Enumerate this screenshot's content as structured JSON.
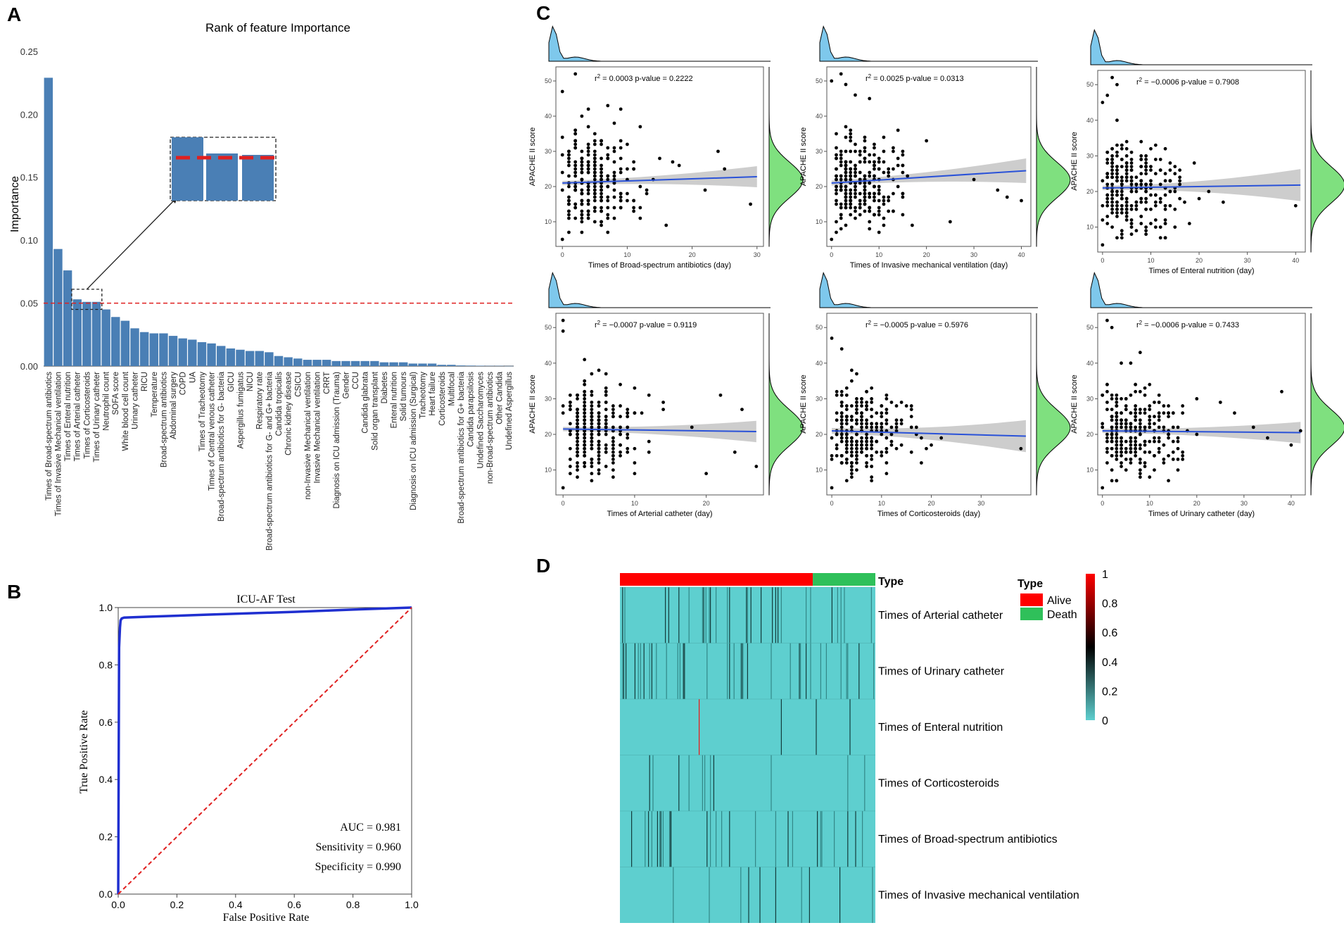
{
  "panel_labels": {
    "a": "A",
    "b": "B",
    "c": "C",
    "d": "D"
  },
  "colors": {
    "bar": "#4a7fb5",
    "threshold": "#e02020",
    "roc": "#1f2fd0",
    "diag": "#e02020",
    "fit": "#2a52d8",
    "ci": "#c8c8c8",
    "dens_x": "#7ec8ec",
    "dens_y": "#7fe07f",
    "alive": "#ff0000",
    "death": "#2fc05a",
    "heat_low": "#5ecfcf",
    "heat_mid": "#000000",
    "heat_high": "#ff0000"
  },
  "chart_data": [
    {
      "id": "A",
      "type": "bar",
      "title": "Rank of feature Importance",
      "ylabel": "Importance",
      "xlabel": "",
      "ylim": [
        0,
        0.26
      ],
      "yticks": [
        "0.00",
        "0.05",
        "0.10",
        "0.15",
        "0.20",
        "0.25"
      ],
      "threshold": 0.05,
      "categories": [
        "Times of Broad-spectrum antibiotics",
        "Times of Invasive Mechanical ventilation",
        "Times of Enteral nutrition",
        "Times of Arterial catheter",
        "Times of Corticosteroids",
        "Times of Urinary catheter",
        "Neutrophil count",
        "SOFA score",
        "White blood cell count",
        "Urinary catheter",
        "RICU",
        "Temperature",
        "Broad-spectrum antibiotics",
        "Abdominal surgery",
        "COPD",
        "UA",
        "Times of Tracheotomy",
        "Times of Central venous catheter",
        "Broad-spectrum antibiotics for G- bacteria",
        "GICU",
        "Aspergillus fumigatus",
        "NICU",
        "Respiratory rate",
        "Broad-spectrum antibiotics for G- and G+ bacteria",
        "Candida tropicalis",
        "Chronic kidney disease",
        "CSICU",
        "non-Invasive Mechanical ventilation",
        "Invasive Mechanical ventilation",
        "CRRT",
        "Diagnosis on ICU admission (Trauma)",
        "Gender",
        "CCU",
        "Candida glabrata",
        "Solid organ transplant",
        "Diabetes",
        "Enteral nutrition",
        "Solid tumours",
        "Diagnosis on ICU admission (Surgical)",
        "Tracheotomy",
        "Heart failure",
        "Corticosteroids",
        "Multifocal",
        "Broad-spectrum antibiotics for G+ bacteria",
        "Candida parapsilosis",
        "Undefined Saccharomyces",
        "non-Broad-spectrum antibiotics",
        "Other Candida",
        "Undefined Aspergillus"
      ],
      "values": [
        0.229,
        0.093,
        0.076,
        0.053,
        0.051,
        0.051,
        0.045,
        0.039,
        0.036,
        0.03,
        0.027,
        0.026,
        0.026,
        0.024,
        0.022,
        0.021,
        0.019,
        0.018,
        0.016,
        0.014,
        0.013,
        0.012,
        0.012,
        0.011,
        0.008,
        0.007,
        0.006,
        0.005,
        0.005,
        0.005,
        0.004,
        0.004,
        0.004,
        0.004,
        0.004,
        0.003,
        0.003,
        0.003,
        0.002,
        0.002,
        0.002,
        0.001,
        0.001,
        0.0005,
        0.0004,
        0.0003,
        0.0002,
        0.0002,
        0.0001
      ]
    },
    {
      "id": "B",
      "type": "line",
      "title": "ICU-AF Test",
      "xlabel": "False Positive Rate",
      "ylabel": "True Positive Rate",
      "xlim": [
        0,
        1
      ],
      "ylim": [
        0,
        1
      ],
      "xticks": [
        "0.0",
        "0.2",
        "0.4",
        "0.6",
        "0.8",
        "1.0"
      ],
      "yticks": [
        "0.0",
        "0.2",
        "0.4",
        "0.6",
        "0.8",
        "1.0"
      ],
      "series": [
        {
          "name": "ROC",
          "x": [
            0,
            0.003,
            0.006,
            0.008,
            0.012,
            0.02,
            0.1,
            0.3,
            0.6,
            0.8,
            1.0
          ],
          "y": [
            0,
            0.86,
            0.93,
            0.955,
            0.962,
            0.965,
            0.968,
            0.975,
            0.985,
            0.993,
            1.0
          ]
        },
        {
          "name": "chance",
          "x": [
            0,
            1
          ],
          "y": [
            0,
            1
          ]
        }
      ],
      "annotations": [
        "AUC = 0.981",
        "Sensitivity = 0.960",
        "Specificity = 0.990"
      ]
    },
    {
      "id": "C",
      "type": "scatter",
      "ylabel": "APACHE II score",
      "panels": [
        {
          "xlabel": "Times of Broad-spectrum antibiotics (day)",
          "xlim": [
            -1,
            31
          ],
          "xticks": [
            0,
            10,
            20,
            30
          ],
          "ylim": [
            3,
            54
          ],
          "yticks": [
            10,
            20,
            30,
            40,
            50
          ],
          "r2": "0.0003",
          "pvalue": "0.2222",
          "fit": [
            21.0,
            22.8
          ],
          "ci_halfwidth": [
            0.6,
            3.0
          ],
          "density_peak": 0.5,
          "points": [
            [
              0,
              5
            ],
            [
              0,
              47
            ],
            [
              2,
              52
            ],
            [
              3,
              40
            ],
            [
              4,
              42
            ],
            [
              5,
              35
            ],
            [
              7,
              43
            ],
            [
              8,
              38
            ],
            [
              9,
              42
            ],
            [
              12,
              37
            ],
            [
              15,
              28
            ],
            [
              18,
              26
            ],
            [
              22,
              19
            ],
            [
              24,
              30
            ],
            [
              25,
              25
            ],
            [
              29,
              15
            ]
          ]
        },
        {
          "xlabel": "Times of Invasive mechanical ventilation (day)",
          "xlim": [
            -1,
            42
          ],
          "xticks": [
            0,
            10,
            20,
            30,
            40
          ],
          "ylim": [
            3,
            54
          ],
          "yticks": [
            10,
            20,
            30,
            40,
            50
          ],
          "r2": "0.0025",
          "pvalue": "0.0313",
          "fit": [
            21.0,
            24.5
          ],
          "ci_halfwidth": [
            0.7,
            3.5
          ],
          "density_peak": 0.5,
          "points": [
            [
              0,
              5
            ],
            [
              0,
              50
            ],
            [
              2,
              52
            ],
            [
              3,
              49
            ],
            [
              5,
              46
            ],
            [
              8,
              45
            ],
            [
              15,
              30
            ],
            [
              20,
              33
            ],
            [
              25,
              10
            ],
            [
              30,
              22
            ],
            [
              35,
              19
            ],
            [
              37,
              17
            ],
            [
              40,
              16
            ]
          ]
        },
        {
          "xlabel": "Times of Enteral nutrition (day)",
          "xlim": [
            -1,
            42
          ],
          "xticks": [
            0,
            10,
            20,
            30,
            40
          ],
          "ylim": [
            3,
            54
          ],
          "yticks": [
            10,
            20,
            30,
            40,
            50
          ],
          "r2": "−0.0006",
          "pvalue": "0.7908",
          "fit": [
            21.0,
            21.8
          ],
          "ci_halfwidth": [
            0.6,
            4.5
          ],
          "density_peak": 0.5,
          "points": [
            [
              0,
              5
            ],
            [
              0,
              45
            ],
            [
              1,
              47
            ],
            [
              2,
              52
            ],
            [
              3,
              50
            ],
            [
              9,
              28
            ],
            [
              12,
              26
            ],
            [
              15,
              25
            ],
            [
              20,
              18
            ],
            [
              22,
              20
            ],
            [
              25,
              17
            ],
            [
              40,
              16
            ]
          ]
        },
        {
          "xlabel": "Times of Arterial catheter (day)",
          "xlim": [
            -1,
            28
          ],
          "xticks": [
            0,
            10,
            20
          ],
          "ylim": [
            3,
            54
          ],
          "yticks": [
            10,
            20,
            30,
            40,
            50
          ],
          "r2": "−0.0007",
          "pvalue": "0.9119",
          "fit": [
            21.5,
            20.8
          ],
          "ci_halfwidth": [
            0.6,
            3.0
          ],
          "density_peak": 0.5,
          "points": [
            [
              0,
              5
            ],
            [
              0,
              52
            ],
            [
              0,
              49
            ],
            [
              3,
              41
            ],
            [
              5,
              38
            ],
            [
              6,
              37
            ],
            [
              10,
              33
            ],
            [
              14,
              29
            ],
            [
              18,
              22
            ],
            [
              20,
              9
            ],
            [
              22,
              31
            ],
            [
              24,
              15
            ],
            [
              25,
              27
            ],
            [
              27,
              11
            ]
          ]
        },
        {
          "xlabel": "Times of Corticosteroids (day)",
          "xlim": [
            -1,
            40
          ],
          "xticks": [
            0,
            10,
            20,
            30
          ],
          "ylim": [
            3,
            54
          ],
          "yticks": [
            10,
            20,
            30,
            40,
            50
          ],
          "r2": "−0.0005",
          "pvalue": "0.5976",
          "fit": [
            21.0,
            19.5
          ],
          "ci_halfwidth": [
            0.8,
            4.5
          ],
          "density_peak": 0.5,
          "points": [
            [
              0,
              5
            ],
            [
              0,
              47
            ],
            [
              2,
              44
            ],
            [
              5,
              37
            ],
            [
              8,
              33
            ],
            [
              10,
              28
            ],
            [
              13,
              24
            ],
            [
              16,
              22
            ],
            [
              18,
              19
            ],
            [
              20,
              17
            ],
            [
              22,
              19
            ],
            [
              38,
              16
            ]
          ]
        },
        {
          "xlabel": "Times of Urinary catheter (day)",
          "xlim": [
            -1,
            43
          ],
          "xticks": [
            0,
            10,
            20,
            30,
            40
          ],
          "ylim": [
            3,
            54
          ],
          "yticks": [
            10,
            20,
            30,
            40,
            50
          ],
          "r2": "−0.0006",
          "pvalue": "0.7433",
          "fit": [
            21.0,
            20.5
          ],
          "ci_halfwidth": [
            0.6,
            3.0
          ],
          "density_peak": 0.5,
          "points": [
            [
              0,
              5
            ],
            [
              1,
              52
            ],
            [
              2,
              50
            ],
            [
              6,
              40
            ],
            [
              8,
              43
            ],
            [
              20,
              30
            ],
            [
              25,
              29
            ],
            [
              28,
              26
            ],
            [
              32,
              22
            ],
            [
              35,
              19
            ],
            [
              38,
              32
            ],
            [
              40,
              17
            ],
            [
              42,
              21
            ]
          ]
        }
      ]
    },
    {
      "id": "D",
      "type": "heatmap",
      "rows": [
        "Times of Arterial catheter",
        "Times of Urinary catheter",
        "Times of Enteral nutrition",
        "Times of Corticosteroids",
        "Times of Broad-spectrum antibiotics",
        "Times of Invasive mechanical ventilation"
      ],
      "annotation_label": "Type",
      "legend_title": "Type",
      "groups": [
        {
          "name": "Alive",
          "fraction": 0.755
        },
        {
          "name": "Death",
          "fraction": 0.245
        }
      ],
      "scale": {
        "min": 0,
        "max": 1,
        "ticks": [
          "1",
          "0.8",
          "0.6",
          "0.4",
          "0.2",
          "0"
        ]
      },
      "row_density": [
        0.32,
        0.45,
        0.1,
        0.18,
        0.3,
        0.28
      ]
    }
  ]
}
